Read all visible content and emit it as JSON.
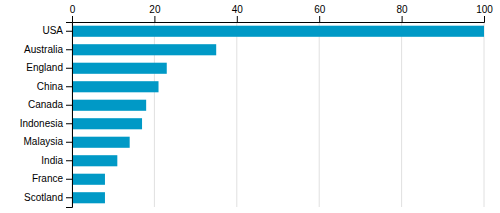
{
  "chart_data": {
    "type": "bar",
    "orientation": "horizontal",
    "categories": [
      "USA",
      "Australia",
      "England",
      "China",
      "Canada",
      "Indonesia",
      "Malaysia",
      "India",
      "France",
      "Scotland"
    ],
    "values": [
      100,
      35,
      23,
      21,
      18,
      17,
      14,
      11,
      8,
      8
    ],
    "color": "#0099c6",
    "xlim": [
      0,
      100
    ],
    "xticks": [
      0,
      20,
      40,
      60,
      80,
      100
    ],
    "grid": true
  }
}
